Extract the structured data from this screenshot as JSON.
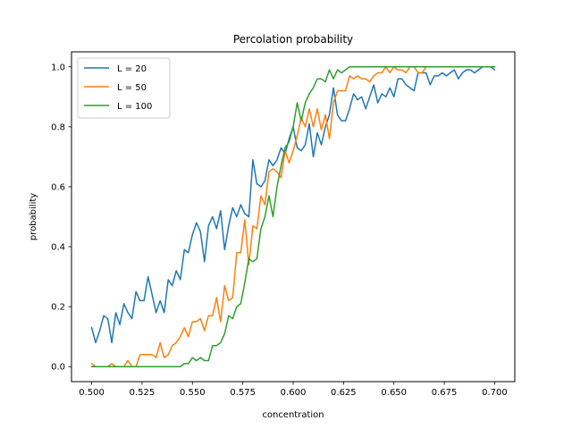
{
  "chart_data": {
    "type": "line",
    "title": "Percolation probability",
    "xlabel": "concentration",
    "ylabel": "probability",
    "xlim": [
      0.49,
      0.71
    ],
    "ylim": [
      -0.05,
      1.05
    ],
    "x_ticks": [
      0.5,
      0.525,
      0.55,
      0.575,
      0.6,
      0.625,
      0.65,
      0.675,
      0.7
    ],
    "x_tick_labels": [
      "0.500",
      "0.525",
      "0.550",
      "0.575",
      "0.600",
      "0.625",
      "0.650",
      "0.675",
      "0.700"
    ],
    "y_ticks": [
      0.0,
      0.2,
      0.4,
      0.6,
      0.8,
      1.0
    ],
    "y_tick_labels": [
      "0.0",
      "0.2",
      "0.4",
      "0.6",
      "0.8",
      "1.0"
    ],
    "grid": false,
    "legend_position": "upper-left",
    "x_start": 0.5,
    "x_step": 0.002,
    "series": [
      {
        "name": "L = 20",
        "color": "#1f77b4",
        "values": [
          0.13,
          0.08,
          0.12,
          0.17,
          0.16,
          0.08,
          0.18,
          0.14,
          0.21,
          0.18,
          0.16,
          0.25,
          0.22,
          0.22,
          0.3,
          0.24,
          0.18,
          0.22,
          0.18,
          0.29,
          0.27,
          0.32,
          0.29,
          0.39,
          0.38,
          0.44,
          0.48,
          0.45,
          0.35,
          0.47,
          0.5,
          0.46,
          0.52,
          0.39,
          0.47,
          0.53,
          0.5,
          0.54,
          0.51,
          0.5,
          0.69,
          0.61,
          0.6,
          0.62,
          0.69,
          0.67,
          0.69,
          0.73,
          0.71,
          0.76,
          0.8,
          0.73,
          0.72,
          0.74,
          0.81,
          0.7,
          0.78,
          0.74,
          0.8,
          0.84,
          0.93,
          0.84,
          0.82,
          0.82,
          0.86,
          0.91,
          0.89,
          0.9,
          0.86,
          0.9,
          0.94,
          0.88,
          0.91,
          0.9,
          0.93,
          0.9,
          0.96,
          0.96,
          0.94,
          0.93,
          0.92,
          0.98,
          0.98,
          0.98,
          0.94,
          0.97,
          0.97,
          0.98,
          0.97,
          0.98,
          0.99,
          0.96,
          0.98,
          0.99,
          0.99,
          0.98,
          0.99,
          1.0,
          1.0,
          1.0,
          0.99
        ]
      },
      {
        "name": "L = 50",
        "color": "#ff7f0e",
        "values": [
          0.01,
          0.0,
          0.0,
          0.0,
          0.0,
          0.01,
          0.0,
          0.0,
          0.0,
          0.02,
          0.0,
          0.0,
          0.04,
          0.04,
          0.04,
          0.04,
          0.03,
          0.08,
          0.03,
          0.04,
          0.07,
          0.08,
          0.1,
          0.13,
          0.1,
          0.15,
          0.15,
          0.16,
          0.12,
          0.17,
          0.17,
          0.23,
          0.15,
          0.27,
          0.22,
          0.23,
          0.38,
          0.38,
          0.49,
          0.34,
          0.47,
          0.46,
          0.57,
          0.54,
          0.65,
          0.66,
          0.65,
          0.63,
          0.72,
          0.68,
          0.72,
          0.77,
          0.83,
          0.8,
          0.86,
          0.8,
          0.86,
          0.79,
          0.84,
          0.76,
          0.88,
          0.92,
          0.92,
          0.92,
          0.97,
          0.96,
          0.97,
          0.96,
          0.96,
          0.95,
          0.97,
          0.98,
          0.98,
          1.0,
          0.98,
          1.0,
          0.99,
          0.99,
          0.98,
          1.0,
          1.0,
          0.98,
          0.98,
          1.0,
          1.0,
          1.0,
          1.0,
          1.0,
          1.0,
          1.0,
          1.0,
          1.0,
          1.0,
          1.0,
          1.0,
          1.0,
          1.0,
          1.0,
          1.0,
          1.0,
          1.0
        ]
      },
      {
        "name": "L = 100",
        "color": "#2ca02c",
        "values": [
          0.0,
          0.0,
          0.0,
          0.0,
          0.0,
          0.0,
          0.0,
          0.0,
          0.0,
          0.0,
          0.0,
          0.0,
          0.0,
          0.0,
          0.0,
          0.0,
          0.0,
          0.0,
          0.0,
          0.0,
          0.0,
          0.0,
          0.0,
          0.01,
          0.01,
          0.03,
          0.02,
          0.03,
          0.02,
          0.02,
          0.07,
          0.07,
          0.08,
          0.11,
          0.17,
          0.16,
          0.2,
          0.21,
          0.28,
          0.36,
          0.35,
          0.36,
          0.46,
          0.5,
          0.57,
          0.5,
          0.6,
          0.67,
          0.73,
          0.75,
          0.8,
          0.88,
          0.82,
          0.88,
          0.91,
          0.93,
          0.96,
          0.96,
          0.95,
          0.99,
          0.96,
          0.99,
          0.98,
          0.99,
          1.0,
          1.0,
          1.0,
          1.0,
          1.0,
          1.0,
          1.0,
          1.0,
          1.0,
          1.0,
          1.0,
          1.0,
          1.0,
          1.0,
          1.0,
          1.0,
          1.0,
          1.0,
          1.0,
          1.0,
          1.0,
          1.0,
          1.0,
          1.0,
          1.0,
          1.0,
          1.0,
          1.0,
          1.0,
          1.0,
          1.0,
          1.0,
          1.0,
          1.0,
          1.0,
          1.0,
          1.0
        ]
      }
    ]
  }
}
